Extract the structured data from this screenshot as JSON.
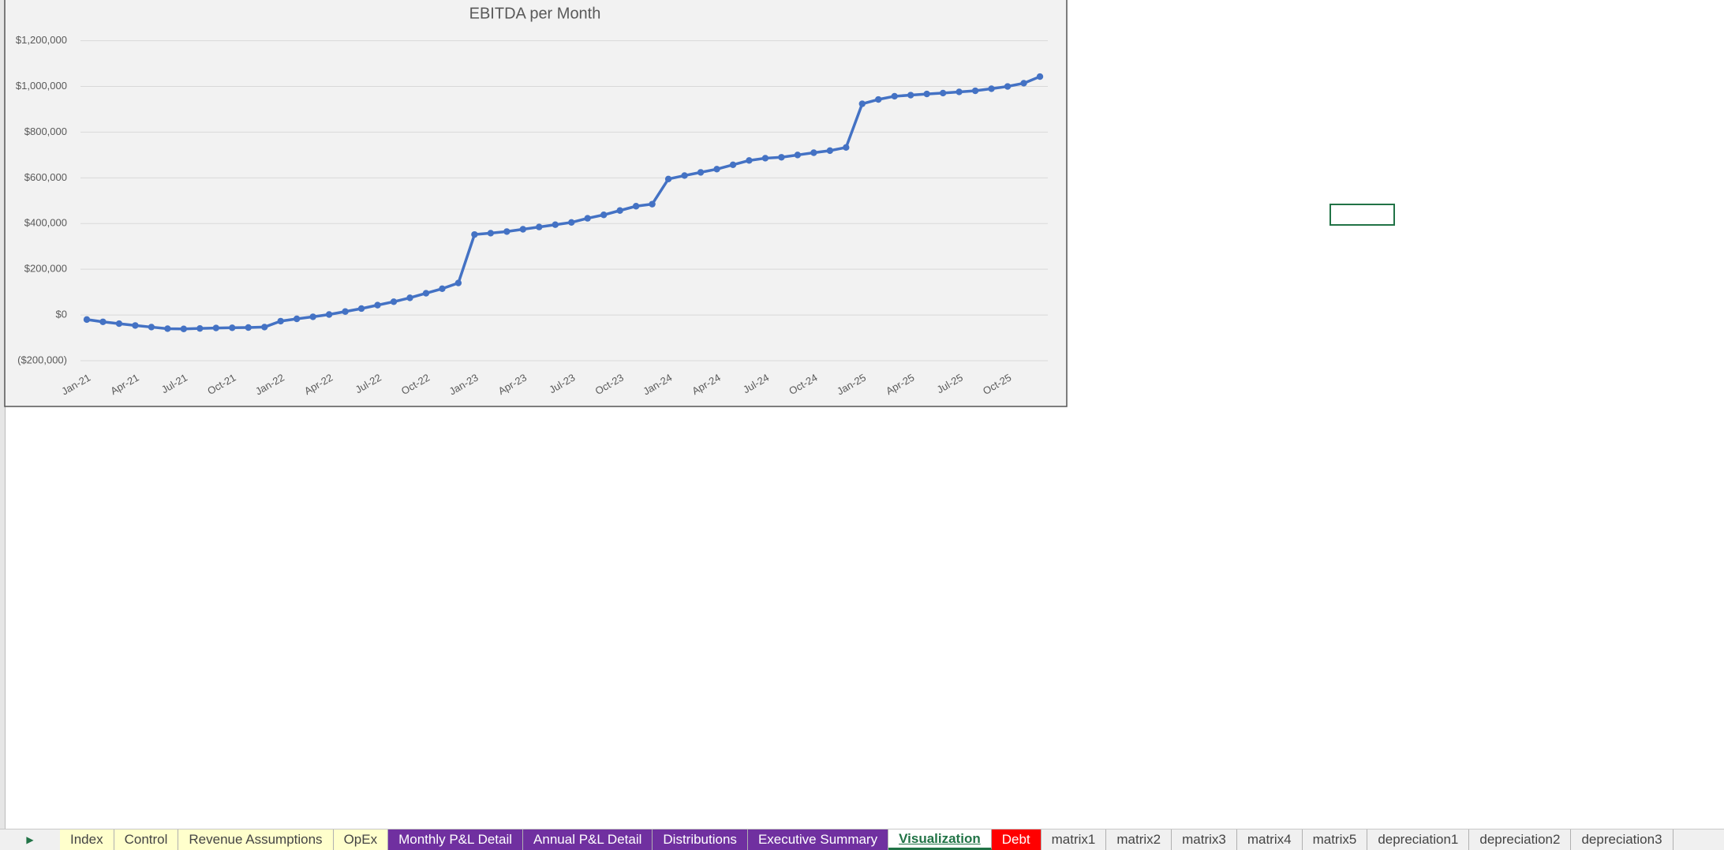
{
  "chart_data": {
    "type": "line",
    "title": "EBITDA per Month",
    "categories": [
      "Jan-21",
      null,
      null,
      "Apr-21",
      null,
      null,
      "Jul-21",
      null,
      null,
      "Oct-21",
      null,
      null,
      "Jan-22",
      null,
      null,
      "Apr-22",
      null,
      null,
      "Jul-22",
      null,
      null,
      "Oct-22",
      null,
      null,
      "Jan-23",
      null,
      null,
      "Apr-23",
      null,
      null,
      "Jul-23",
      null,
      null,
      "Oct-23",
      null,
      null,
      "Jan-24",
      null,
      null,
      "Apr-24",
      null,
      null,
      "Jul-24",
      null,
      null,
      "Oct-24",
      null,
      null,
      "Jan-25",
      null,
      null,
      "Apr-25",
      null,
      null,
      "Jul-25",
      null,
      null,
      "Oct-25",
      null,
      null
    ],
    "series": [
      {
        "name": "EBITDA",
        "color": "#4472c4",
        "values": [
          -20000,
          -30000,
          -38000,
          -46000,
          -53000,
          -60000,
          -61000,
          -59000,
          -57000,
          -56000,
          -55000,
          -53000,
          -27000,
          -17000,
          -8000,
          2000,
          15000,
          28000,
          43000,
          58000,
          75000,
          95000,
          115000,
          140000,
          352000,
          358000,
          365000,
          375000,
          385000,
          395000,
          405000,
          423000,
          438000,
          457000,
          476000,
          485000,
          595000,
          610000,
          624000,
          638000,
          657000,
          676000,
          686000,
          690000,
          700000,
          710000,
          719000,
          733000,
          924000,
          943000,
          957000,
          962000,
          967000,
          971000,
          976000,
          981000,
          990000,
          1000000,
          1014000,
          1043000
        ]
      }
    ],
    "ylim": [
      -200000,
      1200000
    ],
    "yticks": [
      {
        "value": -200000,
        "label": "($200,000)"
      },
      {
        "value": 0,
        "label": "$0"
      },
      {
        "value": 200000,
        "label": "$200,000"
      },
      {
        "value": 400000,
        "label": "$400,000"
      },
      {
        "value": 600000,
        "label": "$600,000"
      },
      {
        "value": 800000,
        "label": "$800,000"
      },
      {
        "value": 1000000,
        "label": "$1,000,000"
      },
      {
        "value": 1200000,
        "label": "$1,200,000"
      }
    ],
    "grid": true
  },
  "sheet_tabs": [
    {
      "label": "Index",
      "color": "#ffffcc"
    },
    {
      "label": "Control",
      "color": "#ffffcc"
    },
    {
      "label": "Revenue Assumptions",
      "color": "#ffffcc"
    },
    {
      "label": "OpEx",
      "color": "#ffffcc"
    },
    {
      "label": "Monthly P&L Detail",
      "color": "#7030a0"
    },
    {
      "label": "Annual P&L Detail",
      "color": "#7030a0"
    },
    {
      "label": "Distributions",
      "color": "#7030a0"
    },
    {
      "label": "Executive Summary",
      "color": "#7030a0"
    },
    {
      "label": "Visualization",
      "color": "#ffffff",
      "active": true
    },
    {
      "label": "Debt",
      "color": "#ff0000"
    },
    {
      "label": "matrix1"
    },
    {
      "label": "matrix2"
    },
    {
      "label": "matrix3"
    },
    {
      "label": "matrix4"
    },
    {
      "label": "matrix5"
    },
    {
      "label": "depreciation1"
    },
    {
      "label": "depreciation2"
    },
    {
      "label": "depreciation3"
    }
  ]
}
